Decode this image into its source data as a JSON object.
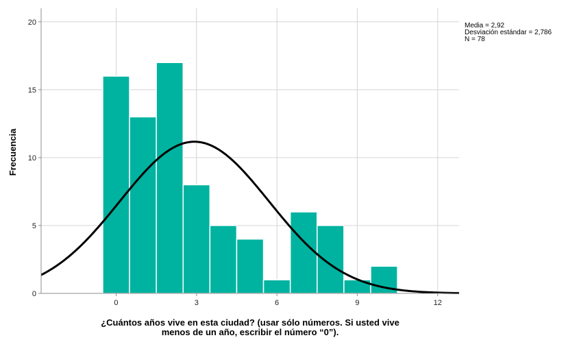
{
  "chart_data": {
    "type": "bar",
    "subtype": "histogram-with-normal-curve",
    "bins": [
      {
        "x0": -0.5,
        "x1": 0.5,
        "count": 16
      },
      {
        "x0": 0.5,
        "x1": 1.5,
        "count": 13
      },
      {
        "x0": 1.5,
        "x1": 2.5,
        "count": 17
      },
      {
        "x0": 2.5,
        "x1": 3.5,
        "count": 8
      },
      {
        "x0": 3.5,
        "x1": 4.5,
        "count": 5
      },
      {
        "x0": 4.5,
        "x1": 5.5,
        "count": 4
      },
      {
        "x0": 5.5,
        "x1": 6.5,
        "count": 1
      },
      {
        "x0": 6.5,
        "x1": 7.5,
        "count": 6
      },
      {
        "x0": 7.5,
        "x1": 8.5,
        "count": 5
      },
      {
        "x0": 8.5,
        "x1": 9.5,
        "count": 1
      },
      {
        "x0": 9.5,
        "x1": 10.5,
        "count": 2
      }
    ],
    "normal_curve": {
      "mean": 2.92,
      "sd": 2.786,
      "n": 78,
      "bin_width": 1
    },
    "xlim": [
      -2.8,
      12.8
    ],
    "ylim": [
      0,
      21
    ],
    "xticks": [
      0,
      3,
      6,
      9,
      12
    ],
    "yticks": [
      0,
      5,
      10,
      15,
      20
    ],
    "xlabel_line1": "¿Cuántos años vive en esta ciudad? (usar sólo números. Si usted vive",
    "xlabel_line2": "menos de un año, escribir el número “0”).",
    "ylabel": "Frecuencia",
    "stats_lines": [
      "Media = 2,92",
      "Desviación estándar = 2,786",
      "N = 78"
    ],
    "grid": true,
    "colors": {
      "bar": "#00b3a0",
      "bar_edge": "#ffffff",
      "curve": "#000000",
      "grid": "#d4d4d4",
      "axis": "#8c8c8c"
    }
  }
}
